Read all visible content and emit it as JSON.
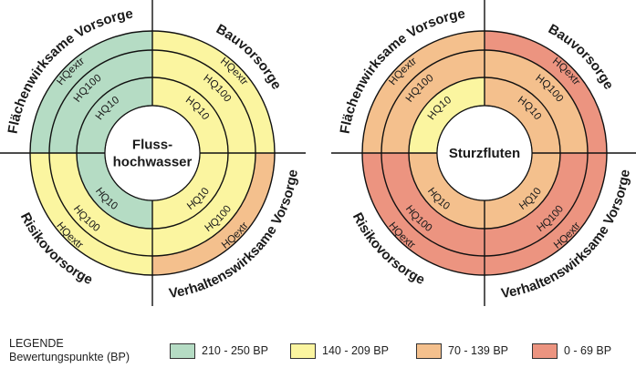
{
  "colors": {
    "green": "#b5dcc4",
    "yellow": "#fbf5a0",
    "orange": "#f4c08d",
    "red": "#ec9480"
  },
  "rings": [
    "HQ10",
    "HQ100",
    "HQextr"
  ],
  "diagrams": [
    {
      "center_lines": [
        "Fluss-",
        "hochwasser"
      ],
      "sectors": {
        "top_left": {
          "label": "Flächenwirksame Vorsorge",
          "colors": [
            "green",
            "green",
            "green"
          ]
        },
        "top_right": {
          "label": "Bauvorsorge",
          "colors": [
            "yellow",
            "yellow",
            "yellow"
          ]
        },
        "bottom_left": {
          "label": "Risikovorsorge",
          "colors": [
            "green",
            "yellow",
            "yellow"
          ]
        },
        "bottom_right": {
          "label": "Verhaltenswirksame Vorsorge",
          "colors": [
            "yellow",
            "yellow",
            "orange"
          ]
        }
      }
    },
    {
      "center_lines": [
        "Sturzfluten"
      ],
      "sectors": {
        "top_left": {
          "label": "Flächenwirksame Vorsorge",
          "colors": [
            "yellow",
            "orange",
            "orange"
          ]
        },
        "top_right": {
          "label": "Bauvorsorge",
          "colors": [
            "orange",
            "orange",
            "red"
          ]
        },
        "bottom_left": {
          "label": "Risikovorsorge",
          "colors": [
            "orange",
            "red",
            "red"
          ]
        },
        "bottom_right": {
          "label": "Verhaltenswirksame Vorsorge",
          "colors": [
            "orange",
            "red",
            "red"
          ]
        }
      }
    }
  ],
  "legend": {
    "title": "LEGENDE",
    "subtitle": "Bewertungspunkte (BP)",
    "items": [
      {
        "color": "green",
        "label": "210 - 250 BP"
      },
      {
        "color": "yellow",
        "label": "140 - 209 BP"
      },
      {
        "color": "orange",
        "label": "70 - 139 BP"
      },
      {
        "color": "red",
        "label": "0  -  69 BP"
      }
    ]
  }
}
